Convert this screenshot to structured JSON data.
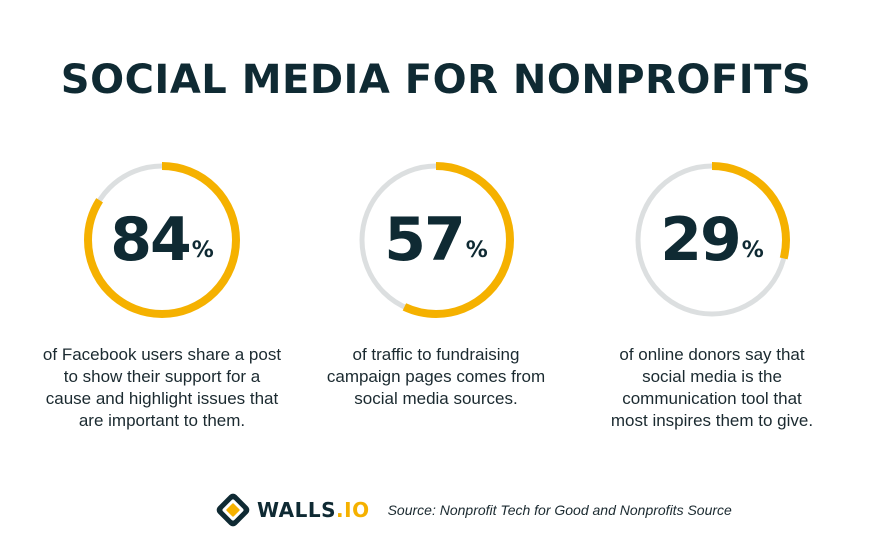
{
  "title": "SOCIAL MEDIA FOR NONPROFITS",
  "colors": {
    "accent": "#f5b100",
    "track": "#dcdfe0",
    "text": "#0f2a33"
  },
  "stats": [
    {
      "value": 84,
      "number": "84",
      "unit": "%",
      "lines": [
        "of Facebook users share a post",
        "to show their support for a",
        "cause and highlight issues that",
        "are important to them."
      ]
    },
    {
      "value": 57,
      "number": "57",
      "unit": "%",
      "lines": [
        "of traffic to fundraising",
        "campaign pages comes from",
        "social media sources."
      ]
    },
    {
      "value": 29,
      "number": "29",
      "unit": "%",
      "lines": [
        "of online donors say that",
        "social media is the",
        "communication tool that",
        "most inspires them to give."
      ]
    }
  ],
  "footer": {
    "logo_main": "WALLS",
    "logo_accent": ".IO",
    "logo_icon": "walls-io-logo-icon",
    "source": "Source: Nonprofit Tech for Good and Nonprofits Source"
  }
}
